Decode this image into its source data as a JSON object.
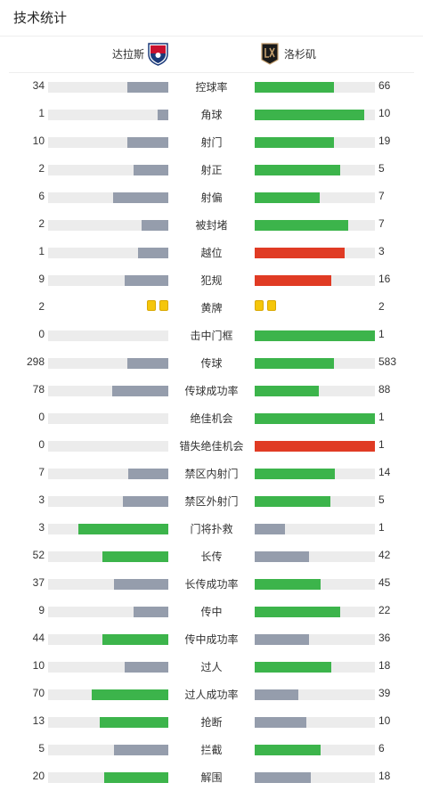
{
  "title": "技术统计",
  "home_team": "达拉斯",
  "away_team": "洛杉矶",
  "colors": {
    "gray": "#959dac",
    "green": "#3cb44b",
    "red": "#e03b24",
    "yellow": "#f5c60a",
    "track": "#ececec"
  },
  "stats": [
    {
      "label": "控球率",
      "home": "34",
      "away": "66",
      "home_frac": 0.34,
      "away_frac": 0.66,
      "home_color": "gray",
      "away_color": "green"
    },
    {
      "label": "角球",
      "home": "1",
      "away": "10",
      "home_frac": 0.09,
      "away_frac": 0.91,
      "home_color": "gray",
      "away_color": "green"
    },
    {
      "label": "射门",
      "home": "10",
      "away": "19",
      "home_frac": 0.34,
      "away_frac": 0.66,
      "home_color": "gray",
      "away_color": "green"
    },
    {
      "label": "射正",
      "home": "2",
      "away": "5",
      "home_frac": 0.29,
      "away_frac": 0.71,
      "home_color": "gray",
      "away_color": "green"
    },
    {
      "label": "射偏",
      "home": "6",
      "away": "7",
      "home_frac": 0.46,
      "away_frac": 0.54,
      "home_color": "gray",
      "away_color": "green"
    },
    {
      "label": "被封堵",
      "home": "2",
      "away": "7",
      "home_frac": 0.22,
      "away_frac": 0.78,
      "home_color": "gray",
      "away_color": "green"
    },
    {
      "label": "越位",
      "home": "1",
      "away": "3",
      "home_frac": 0.25,
      "away_frac": 0.75,
      "home_color": "gray",
      "away_color": "red"
    },
    {
      "label": "犯规",
      "home": "9",
      "away": "16",
      "home_frac": 0.36,
      "away_frac": 0.64,
      "home_color": "gray",
      "away_color": "red"
    },
    {
      "label": "黄牌",
      "home": "2",
      "away": "2",
      "cards": true,
      "home_cards": 2,
      "away_cards": 2
    },
    {
      "label": "击中门框",
      "home": "0",
      "away": "1",
      "home_frac": 0,
      "away_frac": 1,
      "home_color": "gray",
      "away_color": "green"
    },
    {
      "label": "传球",
      "home": "298",
      "away": "583",
      "home_frac": 0.34,
      "away_frac": 0.66,
      "home_color": "gray",
      "away_color": "green"
    },
    {
      "label": "传球成功率",
      "home": "78",
      "away": "88",
      "home_frac": 0.47,
      "away_frac": 0.53,
      "home_color": "gray",
      "away_color": "green"
    },
    {
      "label": "绝佳机会",
      "home": "0",
      "away": "1",
      "home_frac": 0,
      "away_frac": 1,
      "home_color": "gray",
      "away_color": "green"
    },
    {
      "label": "错失绝佳机会",
      "home": "0",
      "away": "1",
      "home_frac": 0,
      "away_frac": 1,
      "home_color": "gray",
      "away_color": "red"
    },
    {
      "label": "禁区内射门",
      "home": "7",
      "away": "14",
      "home_frac": 0.33,
      "away_frac": 0.67,
      "home_color": "gray",
      "away_color": "green"
    },
    {
      "label": "禁区外射门",
      "home": "3",
      "away": "5",
      "home_frac": 0.38,
      "away_frac": 0.63,
      "home_color": "gray",
      "away_color": "green"
    },
    {
      "label": "门将扑救",
      "home": "3",
      "away": "1",
      "home_frac": 0.75,
      "away_frac": 0.25,
      "home_color": "green",
      "away_color": "gray"
    },
    {
      "label": "长传",
      "home": "52",
      "away": "42",
      "home_frac": 0.55,
      "away_frac": 0.45,
      "home_color": "green",
      "away_color": "gray"
    },
    {
      "label": "长传成功率",
      "home": "37",
      "away": "45",
      "home_frac": 0.45,
      "away_frac": 0.55,
      "home_color": "gray",
      "away_color": "green"
    },
    {
      "label": "传中",
      "home": "9",
      "away": "22",
      "home_frac": 0.29,
      "away_frac": 0.71,
      "home_color": "gray",
      "away_color": "green"
    },
    {
      "label": "传中成功率",
      "home": "44",
      "away": "36",
      "home_frac": 0.55,
      "away_frac": 0.45,
      "home_color": "green",
      "away_color": "gray"
    },
    {
      "label": "过人",
      "home": "10",
      "away": "18",
      "home_frac": 0.36,
      "away_frac": 0.64,
      "home_color": "gray",
      "away_color": "green"
    },
    {
      "label": "过人成功率",
      "home": "70",
      "away": "39",
      "home_frac": 0.64,
      "away_frac": 0.36,
      "home_color": "green",
      "away_color": "gray"
    },
    {
      "label": "抢断",
      "home": "13",
      "away": "10",
      "home_frac": 0.57,
      "away_frac": 0.43,
      "home_color": "green",
      "away_color": "gray"
    },
    {
      "label": "拦截",
      "home": "5",
      "away": "6",
      "home_frac": 0.45,
      "away_frac": 0.55,
      "home_color": "gray",
      "away_color": "green"
    },
    {
      "label": "解围",
      "home": "20",
      "away": "18",
      "home_frac": 0.53,
      "away_frac": 0.47,
      "home_color": "green",
      "away_color": "gray"
    }
  ]
}
